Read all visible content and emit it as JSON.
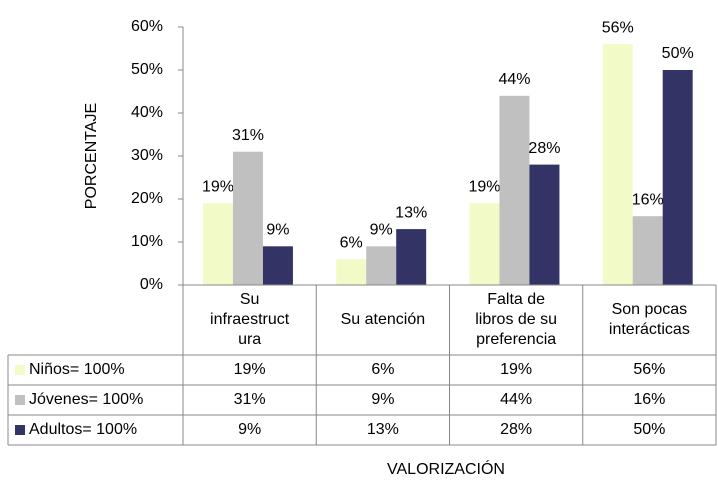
{
  "chart_data": {
    "type": "bar",
    "categories": [
      [
        "Su",
        "infraestruct",
        "ura"
      ],
      [
        "Su atención"
      ],
      [
        "Falta de",
        "libros de su",
        "preferencia"
      ],
      [
        "Son pocas",
        "interácticas"
      ]
    ],
    "series": [
      {
        "name": "Niños= 100%",
        "color": "#f2fac8",
        "values": [
          19,
          6,
          19,
          56
        ],
        "value_labels": [
          "19%",
          "6%",
          "19%",
          "56%"
        ]
      },
      {
        "name": "Jóvenes= 100%",
        "color": "#c0c0c0",
        "values": [
          31,
          9,
          44,
          16
        ],
        "value_labels": [
          "31%",
          "9%",
          "44%",
          "16%"
        ]
      },
      {
        "name": "Adultos= 100%",
        "color": "#333366",
        "values": [
          9,
          13,
          28,
          50
        ],
        "value_labels": [
          "9%",
          "13%",
          "28%",
          "50%"
        ]
      }
    ],
    "ylim": [
      0,
      60
    ],
    "yticks": [
      {
        "value": 0,
        "label": "0%"
      },
      {
        "value": 10,
        "label": "10%"
      },
      {
        "value": 20,
        "label": "20%"
      },
      {
        "value": 30,
        "label": "30%"
      },
      {
        "value": 40,
        "label": "40%"
      },
      {
        "value": 50,
        "label": "50%"
      },
      {
        "value": 60,
        "label": "60%"
      }
    ],
    "ylabel": "PORCENTAJE",
    "xlabel": "VALORIZACIÓN"
  }
}
